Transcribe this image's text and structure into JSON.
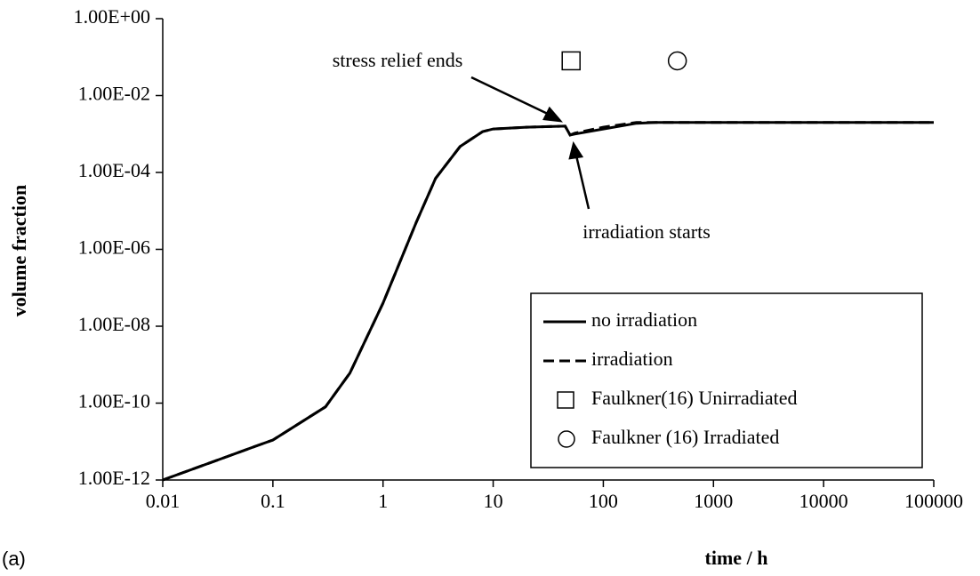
{
  "chart_data": {
    "type": "line",
    "x_label": "time / h",
    "y_label": "volume fraction",
    "panel_label": "(a)",
    "log_x": true,
    "log_y": true,
    "grid": false,
    "legend": "lower right",
    "xlim": [
      0.01,
      100000
    ],
    "ylim": [
      1e-12,
      1
    ],
    "xticks": [
      0.01,
      0.1,
      1,
      10,
      100,
      1000,
      10000,
      100000
    ],
    "yticks": [
      {
        "value": 1,
        "label": "1.00E+00"
      },
      {
        "value": 0.01,
        "label": "1.00E-02"
      },
      {
        "value": 0.0001,
        "label": "1.00E-04"
      },
      {
        "value": 1e-06,
        "label": "1.00E-06"
      },
      {
        "value": 1e-08,
        "label": "1.00E-08"
      },
      {
        "value": 1e-10,
        "label": "1.00E-10"
      },
      {
        "value": 1e-12,
        "label": "1.00E-12"
      }
    ],
    "annotations": [
      "stress relief ends",
      "irradiation starts"
    ],
    "series": [
      {
        "name": "no irradiation",
        "color": "#000000",
        "style": "solid",
        "x": [
          0.01,
          0.07,
          0.1,
          0.3,
          0.5,
          1,
          2,
          3,
          5,
          8,
          10,
          20,
          45,
          50,
          55,
          100,
          200,
          300,
          1000,
          100000
        ],
        "values": [
          1e-12,
          7.6e-12,
          1.1e-11,
          8e-11,
          6e-10,
          4e-08,
          5e-06,
          7e-05,
          0.00047,
          0.00115,
          0.00135,
          0.0015,
          0.0016,
          0.00094,
          0.001,
          0.00135,
          0.0019,
          0.002,
          0.002,
          0.002
        ]
      },
      {
        "name": "irradiation",
        "color": "#000000",
        "style": "dashed",
        "x": [
          0.01,
          0.07,
          0.1,
          0.3,
          0.5,
          1,
          2,
          3,
          5,
          8,
          10,
          20,
          45,
          50,
          55,
          100,
          200,
          300,
          1000,
          100000
        ],
        "values": [
          1e-12,
          7.6e-12,
          1.1e-11,
          8e-11,
          6e-10,
          4e-08,
          5e-06,
          7e-05,
          0.00047,
          0.00115,
          0.00135,
          0.0015,
          0.0016,
          0.00094,
          0.00105,
          0.0015,
          0.002,
          0.002,
          0.002,
          0.002
        ]
      },
      {
        "name": "Faulkner(16) Unirradiated",
        "color": "#000000",
        "style": "square",
        "x": [
          51
        ],
        "values": [
          0.08
        ]
      },
      {
        "name": "Faulkner (16) Irradiated",
        "color": "#000000",
        "style": "circle",
        "x": [
          470
        ],
        "values": [
          0.08
        ]
      }
    ]
  }
}
